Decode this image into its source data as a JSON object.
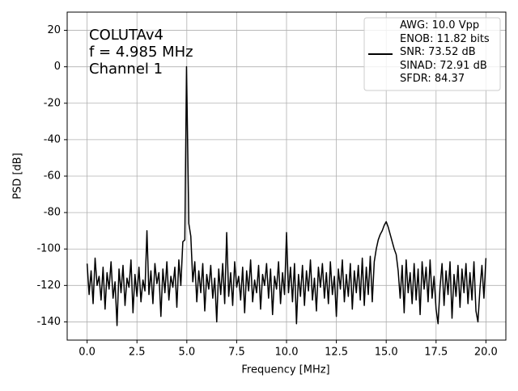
{
  "chart_data": {
    "type": "line",
    "xlabel": "Frequency [MHz]",
    "ylabel": "PSD [dB]",
    "annotation": "COLUTAv4\nf = 4.985 MHz\nChannel 1",
    "x": [
      0,
      0.1,
      0.2,
      0.3,
      0.4,
      0.5,
      0.6,
      0.7,
      0.8,
      0.9,
      1,
      1.1,
      1.2,
      1.3,
      1.4,
      1.5,
      1.6,
      1.7,
      1.8,
      1.9,
      2,
      2.1,
      2.2,
      2.3,
      2.4,
      2.5,
      2.6,
      2.7,
      2.8,
      2.9,
      3,
      3.1,
      3.2,
      3.3,
      3.4,
      3.5,
      3.6,
      3.7,
      3.8,
      3.9,
      4,
      4.1,
      4.2,
      4.3,
      4.4,
      4.5,
      4.6,
      4.7,
      4.8,
      4.9,
      4.985,
      5.1,
      5.2,
      5.3,
      5.4,
      5.5,
      5.6,
      5.7,
      5.8,
      5.9,
      6,
      6.1,
      6.2,
      6.3,
      6.4,
      6.5,
      6.6,
      6.7,
      6.8,
      6.9,
      7,
      7.1,
      7.2,
      7.3,
      7.4,
      7.5,
      7.6,
      7.7,
      7.8,
      7.9,
      8,
      8.1,
      8.2,
      8.3,
      8.4,
      8.5,
      8.6,
      8.7,
      8.8,
      8.9,
      9,
      9.1,
      9.2,
      9.3,
      9.4,
      9.5,
      9.6,
      9.7,
      9.8,
      9.9,
      10,
      10.1,
      10.2,
      10.3,
      10.4,
      10.5,
      10.6,
      10.7,
      10.8,
      10.9,
      11,
      11.1,
      11.2,
      11.3,
      11.4,
      11.5,
      11.6,
      11.7,
      11.8,
      11.9,
      12,
      12.1,
      12.2,
      12.3,
      12.4,
      12.5,
      12.6,
      12.7,
      12.8,
      12.9,
      13,
      13.1,
      13.2,
      13.3,
      13.4,
      13.5,
      13.6,
      13.7,
      13.8,
      13.9,
      14,
      14.1,
      14.2,
      14.3,
      14.4,
      14.5,
      14.6,
      14.7,
      14.8,
      14.9,
      15,
      15.1,
      15.2,
      15.3,
      15.4,
      15.5,
      15.6,
      15.7,
      15.8,
      15.9,
      16,
      16.1,
      16.2,
      16.3,
      16.4,
      16.5,
      16.6,
      16.7,
      16.8,
      16.9,
      17,
      17.1,
      17.2,
      17.3,
      17.4,
      17.5,
      17.6,
      17.7,
      17.8,
      17.9,
      18,
      18.1,
      18.2,
      18.3,
      18.4,
      18.5,
      18.6,
      18.7,
      18.8,
      18.9,
      19,
      19.1,
      19.2,
      19.3,
      19.4,
      19.5,
      19.6,
      19.7,
      19.8,
      19.9,
      20
    ],
    "series": [
      {
        "name": "AWG: 10.0 Vpp\nENOB: 11.82 bits\nSNR: 73.52 dB\nSINAD: 72.91 dB\nSFDR: 84.37",
        "color": "#000000",
        "values": [
          -108,
          -125,
          -112,
          -130,
          -105,
          -120,
          -115,
          -128,
          -110,
          -133,
          -113,
          -122,
          -107,
          -127,
          -118,
          -142,
          -111,
          -124,
          -109,
          -131,
          -116,
          -121,
          -106,
          -135,
          -114,
          -126,
          -110,
          -129,
          -117,
          -123,
          -90,
          -125,
          -112,
          -130,
          -108,
          -119,
          -113,
          -137,
          -111,
          -124,
          -107,
          -128,
          -115,
          -121,
          -110,
          -132,
          -106,
          -120,
          -96,
          -95,
          0,
          -86,
          -93,
          -118,
          -107,
          -129,
          -112,
          -124,
          -108,
          -134,
          -114,
          -122,
          -109,
          -127,
          -116,
          -140,
          -111,
          -125,
          -108,
          -130,
          -91,
          -126,
          -113,
          -131,
          -107,
          -121,
          -115,
          -128,
          -110,
          -135,
          -112,
          -123,
          -106,
          -129,
          -117,
          -124,
          -109,
          -133,
          -114,
          -120,
          -108,
          -127,
          -111,
          -136,
          -115,
          -122,
          -107,
          -130,
          -113,
          -125,
          -91,
          -124,
          -110,
          -129,
          -108,
          -141,
          -114,
          -126,
          -109,
          -131,
          -112,
          -123,
          -106,
          -128,
          -116,
          -134,
          -110,
          -121,
          -108,
          -127,
          -113,
          -130,
          -107,
          -125,
          -115,
          -137,
          -111,
          -122,
          -106,
          -129,
          -114,
          -126,
          -108,
          -133,
          -112,
          -124,
          -109,
          -128,
          -105,
          -131,
          -110,
          -125,
          -104,
          -129,
          -107,
          -100,
          -95,
          -92,
          -90,
          -87,
          -85,
          -88,
          -92,
          -96,
          -100,
          -103,
          -112,
          -127,
          -109,
          -135,
          -106,
          -124,
          -113,
          -130,
          -108,
          -128,
          -111,
          -136,
          -107,
          -122,
          -110,
          -129,
          -106,
          -127,
          -115,
          -133,
          -141,
          -121,
          -108,
          -131,
          -112,
          -125,
          -107,
          -138,
          -114,
          -126,
          -109,
          -132,
          -111,
          -124,
          -108,
          -130,
          -113,
          -128,
          -107,
          -134,
          -140,
          -122,
          -109,
          -127,
          -105
        ]
      }
    ],
    "xlim": [
      -1.0,
      21.0
    ],
    "ylim": [
      -150,
      30
    ],
    "xticks": [
      {
        "value": 0,
        "label": "0.0"
      },
      2.5,
      {
        "value": 5,
        "label": "5.0"
      },
      7.5,
      {
        "value": 10,
        "label": "10.0"
      },
      12.5,
      {
        "value": 15,
        "label": "15.0"
      },
      17.5,
      {
        "value": 20,
        "label": "20.0"
      }
    ],
    "yticks": [
      -140,
      -120,
      -100,
      -80,
      -60,
      -40,
      -20,
      0,
      20
    ],
    "grid": true,
    "legend": "upper right"
  }
}
